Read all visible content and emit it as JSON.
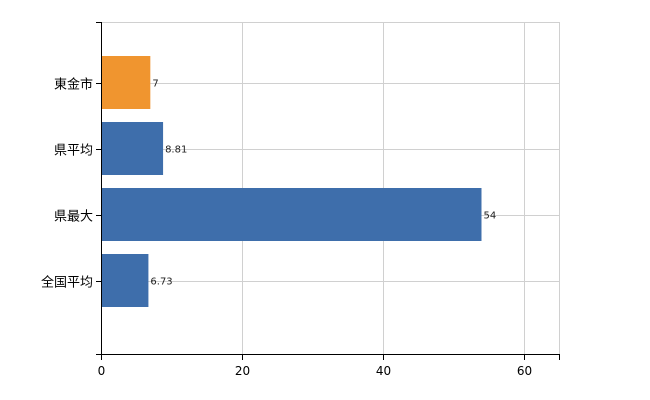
{
  "chart_data": {
    "type": "bar",
    "orientation": "horizontal",
    "categories": [
      "東金市",
      "県平均",
      "県最大",
      "全国平均"
    ],
    "values": [
      7,
      8.81,
      54,
      6.73
    ],
    "value_labels": [
      "7",
      "8.81",
      "54",
      "6.73"
    ],
    "bar_colors": [
      "#f0952f",
      "#3e6eab",
      "#3e6eab",
      "#3e6eab"
    ],
    "xlim": [
      0,
      65
    ],
    "xticks": [
      0,
      20,
      40,
      60
    ],
    "xtick_labels": [
      "0",
      "20",
      "40",
      "60"
    ],
    "grid": true,
    "title": "",
    "xlabel": "",
    "ylabel": ""
  },
  "colors": {
    "highlight": "#f0952f",
    "default": "#3e6eab",
    "grid": "#d0d0d0",
    "axis": "#000000"
  }
}
